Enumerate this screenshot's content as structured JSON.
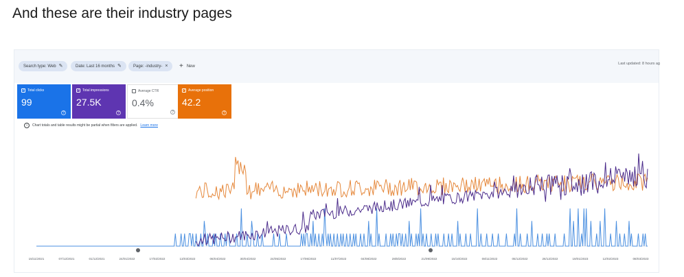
{
  "heading": "And these are their industry pages",
  "filters": {
    "search_type": "Search type: Web",
    "date": "Date: Last 16 months",
    "page": "Page: -industry-",
    "new_label": "New"
  },
  "last_updated": "Last updated: 8 hours ag",
  "metrics": {
    "clicks": {
      "label": "Total clicks",
      "value": "99",
      "checked": true
    },
    "impressions": {
      "label": "Total impressions",
      "value": "27.5K",
      "checked": true
    },
    "ctr": {
      "label": "Average CTR",
      "value": "0.4%",
      "checked": false
    },
    "position": {
      "label": "Average position",
      "value": "42.2",
      "checked": true
    }
  },
  "note": {
    "text": "Chart totals and table results might be partial when filters are applied.",
    "link": "Learn more"
  },
  "colors": {
    "clicks": "#4a8fe0",
    "impressions": "#4a2a8a",
    "position": "#e5873a"
  },
  "chart_data": {
    "type": "line",
    "x_labels": [
      "15/11/2021",
      "07/12/2021",
      "01/12/2021",
      "24/01/2022",
      "17/02/2022",
      "13/03/2022",
      "06/04/2022",
      "30/04/2022",
      "24/05/2022",
      "17/06/2022",
      "11/07/2022",
      "04/08/2022",
      "28/8/2022",
      "21/09/2022",
      "15/10/2022",
      "08/11/2022",
      "05/12/2022",
      "26/12/2022",
      "19/01/2023",
      "12/02/2023",
      "08/03/2023"
    ],
    "series": [
      {
        "key": "clicks",
        "values": [
          0,
          0,
          0,
          0,
          0,
          0,
          0,
          0,
          0,
          0,
          0,
          0,
          0,
          0,
          0,
          0,
          0,
          0,
          0,
          0,
          0,
          0,
          0,
          0,
          0,
          0,
          0,
          0,
          0,
          0,
          0,
          0,
          0,
          0,
          0,
          0,
          0,
          0,
          0,
          0,
          0,
          0,
          0,
          0,
          0,
          0,
          0,
          0,
          0,
          0,
          0,
          0,
          0,
          0,
          0,
          0,
          0,
          0,
          0,
          0,
          0,
          0,
          0,
          0,
          0,
          0,
          0,
          0,
          0,
          0,
          0,
          0,
          0,
          0,
          0,
          0,
          0,
          0,
          0,
          0,
          0,
          0,
          0,
          0,
          0,
          0,
          0,
          0,
          0,
          0,
          0,
          0,
          0,
          0,
          0,
          0,
          0,
          0,
          0,
          0,
          0,
          0,
          0,
          0,
          0,
          0,
          0,
          0,
          0,
          0,
          0,
          0,
          0,
          0,
          0,
          0,
          0,
          0,
          0,
          0,
          1,
          0,
          0,
          0,
          0,
          1,
          0,
          0,
          1,
          0,
          0,
          0,
          1,
          1,
          0,
          1,
          0,
          0,
          1,
          0,
          0,
          0,
          1,
          0,
          0,
          2,
          1,
          0,
          1,
          0,
          0,
          0,
          0,
          1,
          0,
          1,
          0,
          0,
          0,
          1,
          0,
          0,
          0,
          1,
          0,
          1,
          1,
          0,
          0,
          0,
          0,
          0,
          0,
          1,
          0,
          0,
          0,
          3,
          0,
          0,
          0,
          0,
          1,
          0,
          0,
          0,
          2,
          1,
          0,
          0,
          0,
          1,
          0,
          0,
          0,
          1,
          0,
          0,
          0,
          0,
          0,
          0,
          0,
          0,
          0,
          1,
          0,
          0,
          0,
          0,
          1,
          0,
          0,
          0,
          0,
          0,
          1,
          0,
          0,
          0,
          0,
          0,
          0,
          0,
          0,
          0,
          0,
          0,
          0,
          1,
          0,
          1,
          0,
          1,
          1,
          0,
          0,
          1,
          0,
          2,
          0,
          1,
          0,
          0,
          1,
          0,
          0,
          1,
          0,
          3,
          1,
          0,
          1,
          0,
          1,
          0,
          0,
          1,
          0,
          0,
          1,
          0,
          0,
          1,
          0,
          1,
          0,
          0,
          1,
          0,
          0,
          1,
          0,
          0,
          1,
          0,
          1,
          0,
          0,
          0,
          1,
          0,
          0,
          1,
          0,
          0,
          0,
          2,
          0,
          1,
          0,
          0,
          0,
          0,
          3,
          0,
          1,
          0,
          0,
          0,
          0,
          0,
          1,
          0,
          0,
          0,
          1,
          0,
          1,
          0,
          0,
          1,
          0,
          1,
          1,
          0,
          1,
          0,
          0,
          1,
          0,
          0,
          2,
          0,
          1,
          0,
          0,
          0,
          1,
          0,
          1,
          0,
          3,
          0,
          1,
          0,
          0,
          1,
          0,
          0,
          0,
          1,
          0,
          0,
          0,
          1,
          0,
          1,
          0,
          0,
          0,
          0,
          1,
          0,
          0,
          0,
          1,
          0,
          0,
          1,
          0,
          0,
          0,
          0,
          2,
          0,
          1,
          0,
          0,
          0,
          0,
          1,
          0,
          0,
          0,
          1,
          0,
          0,
          0,
          0,
          0,
          3,
          0,
          0,
          1,
          0,
          0,
          0,
          0,
          1,
          0,
          0,
          0,
          0,
          1,
          0,
          0,
          0,
          0,
          1,
          0,
          0,
          0,
          0,
          0,
          0,
          1,
          0,
          0,
          0,
          0,
          0,
          0,
          1,
          0,
          3,
          0,
          0,
          1,
          0,
          0,
          0,
          0,
          0,
          1,
          0,
          0,
          0,
          2,
          0,
          0,
          0,
          0,
          1,
          0,
          0,
          0,
          1,
          0,
          0,
          0,
          1,
          0,
          1,
          0,
          0,
          0,
          0,
          1,
          0,
          0,
          0,
          0,
          0,
          0,
          0,
          1,
          0,
          0,
          0,
          0,
          3,
          0,
          0,
          2,
          0,
          0,
          0,
          3,
          0,
          0,
          1,
          0,
          3,
          0,
          3,
          0,
          0,
          0,
          2,
          0,
          0,
          0,
          0,
          1,
          0,
          0,
          2,
          0,
          0,
          0,
          3,
          0,
          0,
          0,
          0,
          1,
          0,
          0,
          0,
          0,
          2,
          0,
          0,
          1,
          0,
          0,
          0,
          1,
          0,
          0,
          0,
          2,
          0,
          1,
          0,
          0,
          0,
          0,
          0,
          1,
          0,
          0,
          0,
          1,
          0,
          1,
          0,
          0
        ]
      },
      {
        "key": "impressions",
        "values": []
      },
      {
        "key": "position",
        "values": []
      }
    ]
  }
}
